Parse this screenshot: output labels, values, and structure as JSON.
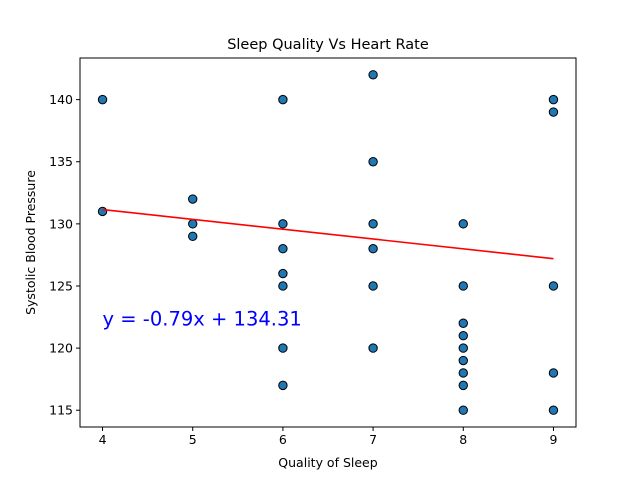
{
  "chart_data": {
    "type": "scatter",
    "title": "Sleep Quality Vs Heart Rate",
    "xlabel": "Quality of Sleep",
    "ylabel": "Systolic Blood Pressure",
    "xlim": [
      3.75,
      9.25
    ],
    "ylim": [
      113.65,
      143.35
    ],
    "xticks": [
      4,
      5,
      6,
      7,
      8,
      9
    ],
    "yticks": [
      115,
      120,
      125,
      130,
      135,
      140
    ],
    "grid": false,
    "points": [
      [
        4,
        140
      ],
      [
        4,
        131
      ],
      [
        5,
        132
      ],
      [
        5,
        130
      ],
      [
        5,
        129
      ],
      [
        6,
        140
      ],
      [
        6,
        130
      ],
      [
        6,
        128
      ],
      [
        6,
        126
      ],
      [
        6,
        125
      ],
      [
        6,
        120
      ],
      [
        6,
        117
      ],
      [
        7,
        142
      ],
      [
        7,
        135
      ],
      [
        7,
        130
      ],
      [
        7,
        128
      ],
      [
        7,
        125
      ],
      [
        7,
        120
      ],
      [
        8,
        130
      ],
      [
        8,
        125
      ],
      [
        8,
        122
      ],
      [
        8,
        121
      ],
      [
        8,
        120
      ],
      [
        8,
        119
      ],
      [
        8,
        118
      ],
      [
        8,
        117
      ],
      [
        8,
        115
      ],
      [
        9,
        140
      ],
      [
        9,
        139
      ],
      [
        9,
        125
      ],
      [
        9,
        118
      ],
      [
        9,
        115
      ]
    ],
    "regression": {
      "slope": -0.79,
      "intercept": 134.31,
      "x_range": [
        4,
        9
      ],
      "equation": "y = -0.79x + 134.31",
      "line_color": "#ff0000",
      "text_color": "#0000ff",
      "annotation_at": [
        4,
        122.3
      ]
    },
    "marker_color": "#1f77b4",
    "marker_edge": "#000000"
  }
}
